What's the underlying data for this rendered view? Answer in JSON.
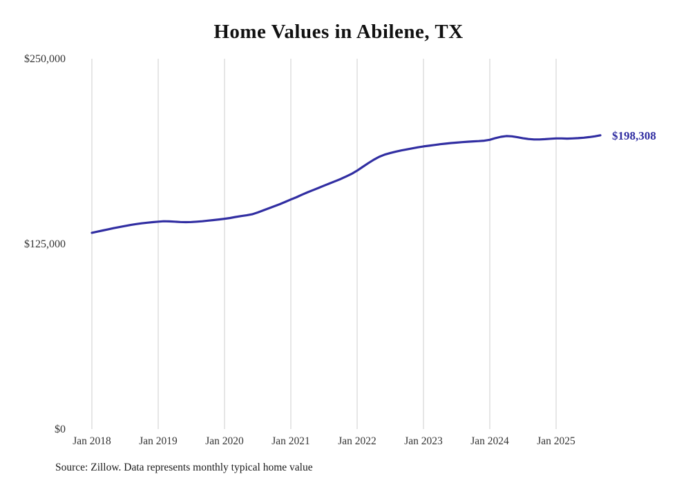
{
  "title": "Home Values in Abilene, TX",
  "source_note": "Source: Zillow. Data represents monthly typical home value",
  "end_label": "$198,308",
  "colors": {
    "line": "#312ea2",
    "grid": "#cccccc",
    "axis_text": "#333333",
    "title_text": "#111111",
    "end_label": "#312ea2",
    "background": "#ffffff"
  },
  "chart_data": {
    "type": "line",
    "title": "Home Values in Abilene, TX",
    "xlabel": "",
    "ylabel": "",
    "legend": "none",
    "grid": "vertical-only",
    "ylim": [
      0,
      250000
    ],
    "y_tick_values": [
      0,
      125000,
      250000
    ],
    "y_tick_labels": [
      "$0",
      "$125,000",
      "$250,000"
    ],
    "x_tick_labels": [
      "Jan 2018",
      "Jan 2019",
      "Jan 2020",
      "Jan 2021",
      "Jan 2022",
      "Jan 2023",
      "Jan 2024",
      "Jan 2025"
    ],
    "x_start": "2018-01",
    "x_interval": "month",
    "final_value": 198308,
    "series": [
      {
        "name": "Typical home value",
        "values": [
          132500,
          133300,
          134100,
          134900,
          135700,
          136400,
          137100,
          137800,
          138400,
          138900,
          139300,
          139700,
          140000,
          140300,
          140200,
          140000,
          139800,
          139700,
          139800,
          140000,
          140300,
          140700,
          141100,
          141500,
          142000,
          142500,
          143200,
          143800,
          144300,
          145000,
          146200,
          147600,
          149000,
          150400,
          151800,
          153400,
          155000,
          156500,
          158200,
          159800,
          161300,
          162800,
          164300,
          165800,
          167300,
          168800,
          170500,
          172300,
          174500,
          177000,
          179500,
          181800,
          183800,
          185300,
          186400,
          187300,
          188100,
          188800,
          189500,
          190200,
          190800,
          191300,
          191800,
          192300,
          192700,
          193100,
          193400,
          193700,
          194000,
          194200,
          194400,
          194700,
          195300,
          196400,
          197300,
          197800,
          197600,
          197000,
          196300,
          195800,
          195500,
          195500,
          195700,
          196000,
          196200,
          196200,
          196100,
          196200,
          196400,
          196700,
          197100,
          197600,
          198308
        ]
      }
    ]
  }
}
